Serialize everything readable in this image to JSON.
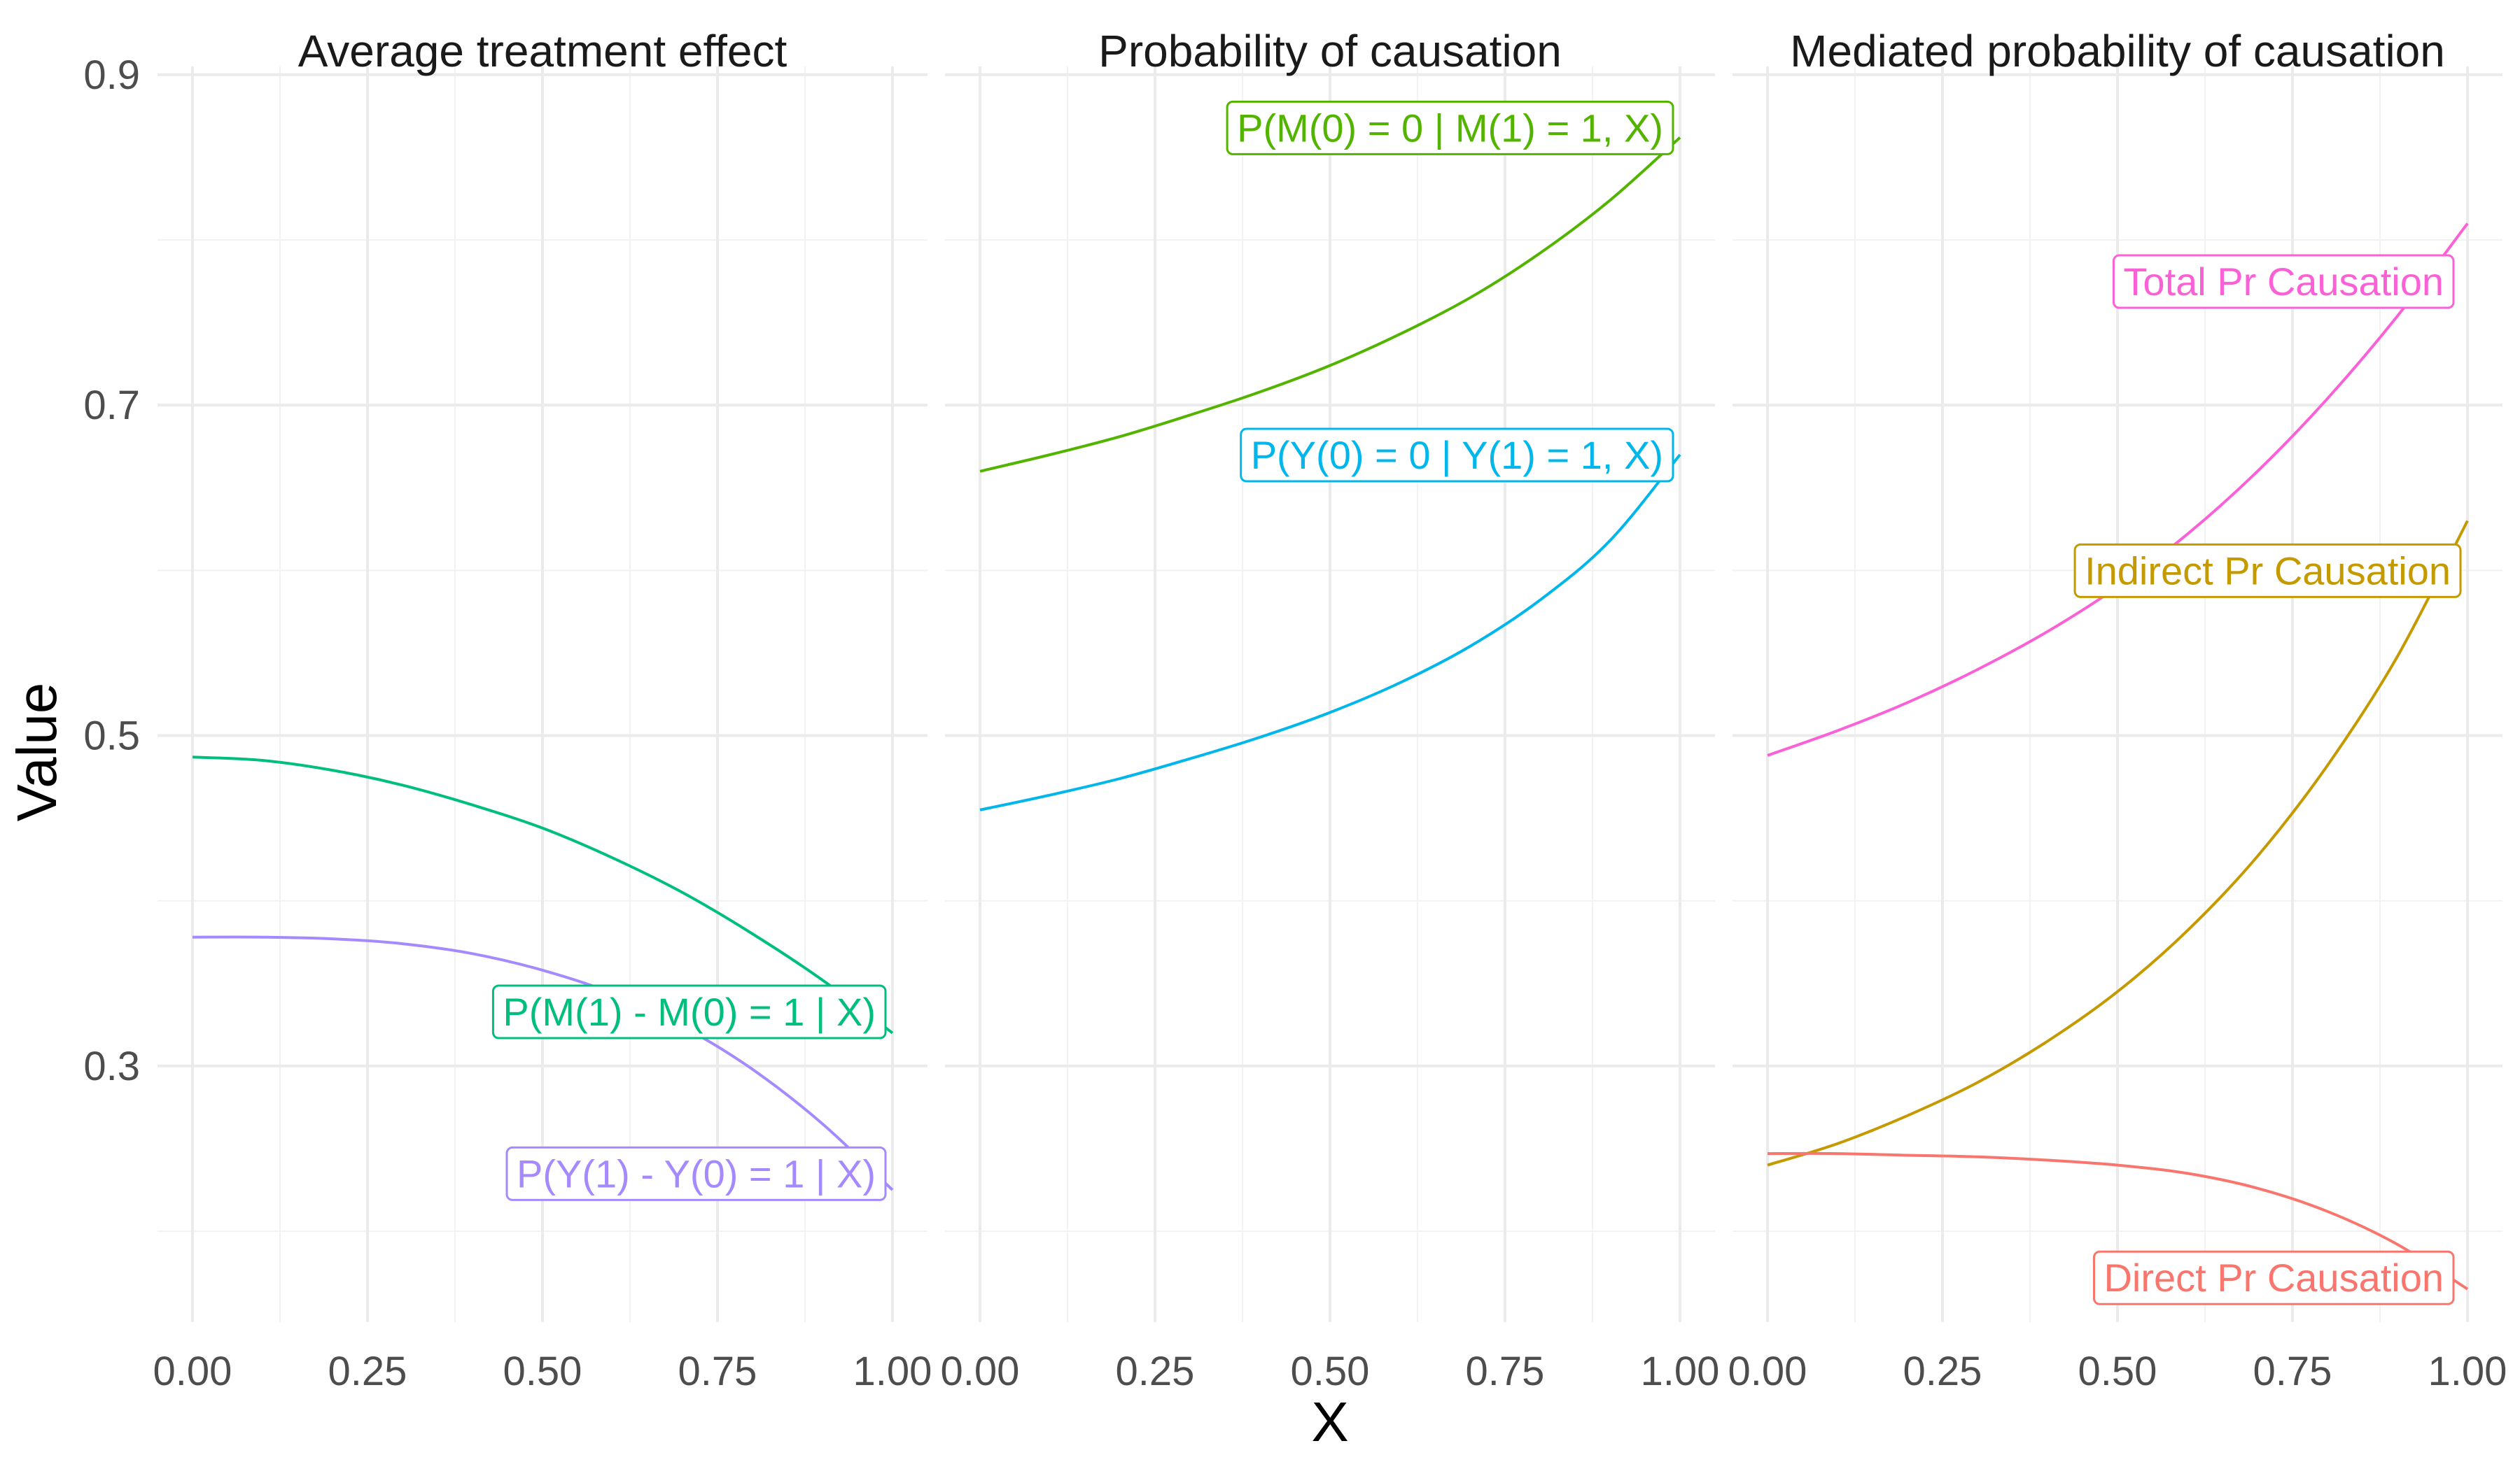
{
  "chart_data": {
    "type": "line",
    "xlabel": "X",
    "ylabel": "Value",
    "xlim": [
      0,
      1
    ],
    "ylim": [
      0.145,
      0.905
    ],
    "x_ticks": [
      0,
      0.25,
      0.5,
      0.75,
      1
    ],
    "x_tick_labels": [
      "0.00",
      "0.25",
      "0.50",
      "0.75",
      "1.00"
    ],
    "y_ticks": [
      0.3,
      0.5,
      0.7,
      0.9
    ],
    "y_tick_labels": [
      "0.3",
      "0.5",
      "0.7",
      "0.9"
    ],
    "grid": true,
    "panels": [
      {
        "title": "Average treatment effect",
        "series": [
          {
            "name": "P(M(1) - M(0) = 1 | X)",
            "color": "#00BF7D",
            "x": [
              0,
              0.1,
              0.2,
              0.3,
              0.4,
              0.5,
              0.6,
              0.7,
              0.8,
              0.9,
              1.0
            ],
            "values": [
              0.487,
              0.485,
              0.479,
              0.47,
              0.458,
              0.444,
              0.426,
              0.405,
              0.38,
              0.352,
              0.32
            ]
          },
          {
            "name": "P(Y(1) - Y(0) = 1 | X)",
            "color": "#A58AFF",
            "x": [
              0,
              0.1,
              0.2,
              0.3,
              0.4,
              0.5,
              0.6,
              0.7,
              0.8,
              0.9,
              1.0
            ],
            "values": [
              0.378,
              0.378,
              0.377,
              0.374,
              0.368,
              0.358,
              0.344,
              0.324,
              0.298,
              0.265,
              0.225
            ]
          }
        ]
      },
      {
        "title": "Probability of causation",
        "series": [
          {
            "name": "P(M(0) = 0 | M(1) = 1, X)",
            "color": "#53B400",
            "x": [
              0,
              0.1,
              0.2,
              0.3,
              0.4,
              0.5,
              0.6,
              0.7,
              0.8,
              0.9,
              1.0
            ],
            "values": [
              0.66,
              0.67,
              0.681,
              0.694,
              0.708,
              0.724,
              0.743,
              0.765,
              0.792,
              0.824,
              0.862
            ]
          },
          {
            "name": "P(Y(0) = 0 | Y(1) = 1, X)",
            "color": "#00B6EB",
            "x": [
              0,
              0.1,
              0.2,
              0.3,
              0.4,
              0.5,
              0.6,
              0.7,
              0.8,
              0.9,
              1.0
            ],
            "values": [
              0.455,
              0.464,
              0.474,
              0.486,
              0.499,
              0.514,
              0.532,
              0.554,
              0.582,
              0.618,
              0.67
            ]
          }
        ]
      },
      {
        "title": "Mediated probability of causation",
        "series": [
          {
            "name": "Total Pr Causation",
            "color": "#FB61D7",
            "x": [
              0,
              0.1,
              0.2,
              0.3,
              0.4,
              0.5,
              0.6,
              0.7,
              0.8,
              0.9,
              1.0
            ],
            "values": [
              0.488,
              0.503,
              0.52,
              0.54,
              0.563,
              0.59,
              0.622,
              0.66,
              0.704,
              0.754,
              0.81
            ]
          },
          {
            "name": "Indirect Pr Causation",
            "color": "#C49A00",
            "x": [
              0,
              0.1,
              0.2,
              0.3,
              0.4,
              0.5,
              0.6,
              0.7,
              0.8,
              0.9,
              1.0
            ],
            "values": [
              0.24,
              0.253,
              0.27,
              0.29,
              0.315,
              0.345,
              0.382,
              0.427,
              0.482,
              0.548,
              0.63
            ]
          },
          {
            "name": "Direct Pr Causation",
            "color": "#F8766D",
            "x": [
              0,
              0.1,
              0.2,
              0.3,
              0.4,
              0.5,
              0.6,
              0.7,
              0.8,
              0.9,
              1.0
            ],
            "values": [
              0.247,
              0.247,
              0.246,
              0.245,
              0.243,
              0.24,
              0.235,
              0.226,
              0.212,
              0.192,
              0.165
            ]
          }
        ]
      }
    ]
  }
}
